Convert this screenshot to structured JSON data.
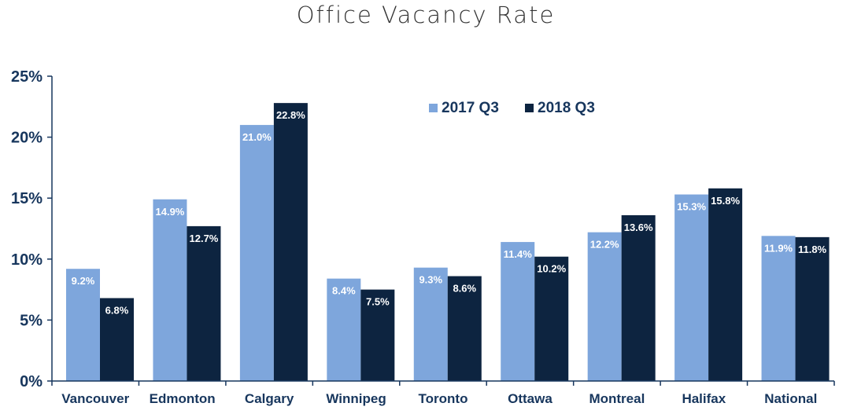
{
  "chart_data": {
    "type": "bar",
    "title": "Office Vacancy Rate",
    "categories": [
      "Vancouver",
      "Edmonton",
      "Calgary",
      "Winnipeg",
      "Toronto",
      "Ottawa",
      "Montreal",
      "Halifax",
      "National"
    ],
    "series": [
      {
        "name": "2017 Q3",
        "values": [
          9.2,
          14.9,
          21.0,
          8.4,
          9.3,
          11.4,
          12.2,
          15.3,
          11.9
        ],
        "labels": [
          "9.2%",
          "14.9%",
          "21.0%",
          "8.4%",
          "9.3%",
          "11.4%",
          "12.2%",
          "15.3%",
          "11.9%"
        ],
        "color": "#7EA6DC"
      },
      {
        "name": "2018 Q3",
        "values": [
          6.8,
          12.7,
          22.8,
          7.5,
          8.6,
          10.2,
          13.6,
          15.8,
          11.8
        ],
        "labels": [
          "6.8%",
          "12.7%",
          "22.8%",
          "7.5%",
          "8.6%",
          "10.2%",
          "13.6%",
          "15.8%",
          "11.8%"
        ],
        "color": "#0D2440"
      }
    ],
    "y_ticks": [
      0,
      5,
      10,
      15,
      20,
      25
    ],
    "y_tick_labels": [
      "0%",
      "5%",
      "10%",
      "15%",
      "20%",
      "25%"
    ],
    "ylim": [
      0,
      25
    ],
    "xlabel": "",
    "ylabel": "",
    "grid": false,
    "legend_position": "top-right",
    "axis_color": "#17365D",
    "label_color": "#17365D"
  }
}
